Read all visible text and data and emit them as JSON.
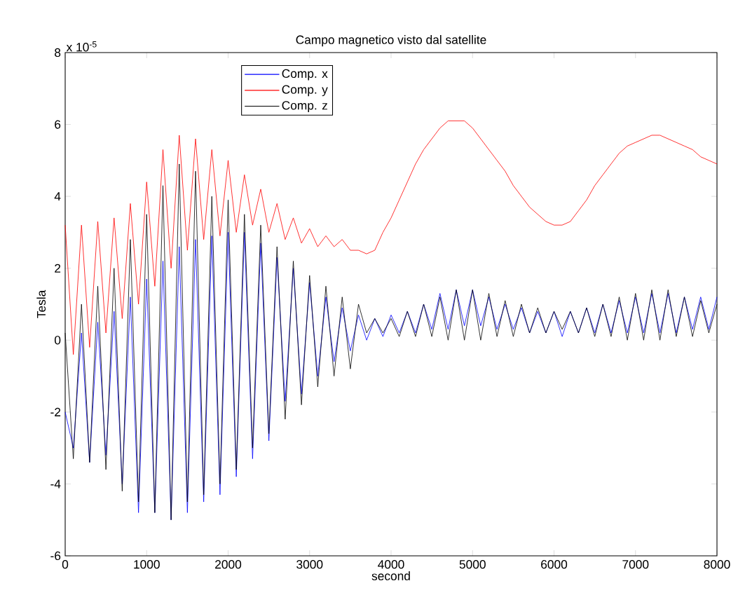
{
  "chart_data": {
    "type": "line",
    "title": "Campo magnetico visto dal satellite",
    "xlabel": "second",
    "ylabel": "Tesla",
    "annotations": [
      "x 10$^{-5}$"
    ],
    "x": [
      0,
      100,
      200,
      300,
      400,
      500,
      600,
      700,
      800,
      900,
      1000,
      1100,
      1200,
      1300,
      1400,
      1500,
      1600,
      1700,
      1800,
      1900,
      2000,
      2100,
      2200,
      2300,
      2400,
      2500,
      2600,
      2700,
      2800,
      2900,
      3000,
      3100,
      3200,
      3300,
      3400,
      3500,
      3600,
      3700,
      3800,
      3900,
      4000,
      4100,
      4200,
      4300,
      4400,
      4500,
      4600,
      4700,
      4800,
      4900,
      5000,
      5100,
      5200,
      5300,
      5400,
      5500,
      5600,
      5700,
      5800,
      5900,
      6000,
      6100,
      6200,
      6300,
      6400,
      6500,
      6600,
      6700,
      6800,
      6900,
      7000,
      7100,
      7200,
      7300,
      7400,
      7500,
      7600,
      7700,
      7800,
      7900,
      8000
    ],
    "series": [
      {
        "name": "Comp. x",
        "color": "#0000ff",
        "values": [
          -2.0,
          -3.0,
          0.2,
          -3.4,
          0.5,
          -3.2,
          0.8,
          -4,
          1.2,
          -4.8,
          1.7,
          -4.8,
          2.2,
          -5,
          2.6,
          -4.8,
          2.8,
          -4.5,
          2.9,
          -4.3,
          3.0,
          -3.8,
          3.0,
          -3.3,
          2.7,
          -2.8,
          2.3,
          -1.7,
          2.0,
          -1.5,
          1.6,
          -1.0,
          1.2,
          -0.6,
          0.9,
          -0.3,
          0.7,
          0,
          0.6,
          0.1,
          0.7,
          0.2,
          0.8,
          0.2,
          1.0,
          0.3,
          1.3,
          0.3,
          1.4,
          0.4,
          1.4,
          0.4,
          1.2,
          0.3,
          1.0,
          0.3,
          0.9,
          0.2,
          0.8,
          0.2,
          0.8,
          0.1,
          0.8,
          0.2,
          0.9,
          0.2,
          1.0,
          0.2,
          1.1,
          0.2,
          1.2,
          0.2,
          1.3,
          0.2,
          1.3,
          0.2,
          1.2,
          0.3,
          1.2,
          0.3,
          1.2
        ]
      },
      {
        "name": "Comp. y",
        "color": "#ff0000",
        "values": [
          3.2,
          -0.4,
          3.2,
          -0.2,
          3.3,
          0.2,
          3.4,
          0.6,
          3.8,
          1.0,
          4.4,
          1.5,
          5.3,
          2.0,
          5.7,
          2.5,
          5.6,
          2.8,
          5.3,
          2.9,
          5.0,
          3.0,
          4.6,
          3.2,
          4.2,
          3.0,
          3.8,
          2.8,
          3.4,
          2.7,
          3.1,
          2.6,
          2.9,
          2.6,
          2.8,
          2.5,
          2.5,
          2.4,
          2.5,
          3.0,
          3.4,
          3.9,
          4.4,
          4.9,
          5.3,
          5.6,
          5.9,
          6.1,
          6.1,
          6.1,
          5.9,
          5.6,
          5.3,
          5.0,
          4.7,
          4.3,
          4.0,
          3.7,
          3.5,
          3.3,
          3.2,
          3.2,
          3.3,
          3.6,
          3.9,
          4.3,
          4.6,
          4.9,
          5.2,
          5.4,
          5.5,
          5.6,
          5.7,
          5.7,
          5.6,
          5.5,
          5.4,
          5.3,
          5.1,
          5.0,
          4.9
        ]
      },
      {
        "name": "Comp. z",
        "color": "#000000",
        "values": [
          0.2,
          -3.3,
          1.0,
          -3.4,
          1.5,
          -3.6,
          2.0,
          -4.2,
          2.8,
          -4.5,
          3.5,
          -4.8,
          4.3,
          -5.0,
          4.9,
          -4.5,
          4.7,
          -4.3,
          4.0,
          -4.0,
          3.9,
          -3.6,
          3.5,
          -3.0,
          3.2,
          -2.6,
          2.6,
          -2.2,
          2.2,
          -1.8,
          1.8,
          -1.3,
          1.5,
          -1.0,
          1.2,
          -0.8,
          1.0,
          0.2,
          0.6,
          0.2,
          0.6,
          0.1,
          0.8,
          0.1,
          1.0,
          0.1,
          1.2,
          0.0,
          1.4,
          0.0,
          1.4,
          0.0,
          1.3,
          0.1,
          1.1,
          0.1,
          1.0,
          0.2,
          0.9,
          0.2,
          0.8,
          0.3,
          0.8,
          0.2,
          0.9,
          0.1,
          1.0,
          0.1,
          1.2,
          0.0,
          1.3,
          0.0,
          1.4,
          0.0,
          1.4,
          0.1,
          1.2,
          0.1,
          1.1,
          0.2,
          1.0
        ]
      }
    ],
    "xlim": [
      0,
      8000
    ],
    "xticks": [
      0,
      1000,
      2000,
      3000,
      4000,
      5000,
      6000,
      7000,
      8000
    ],
    "ylim": [
      -6,
      8
    ],
    "yticks": [
      -6,
      -4,
      -2,
      0,
      2,
      4,
      6,
      8
    ],
    "legend": "top left",
    "line_style": "solid",
    "marker": "none"
  }
}
